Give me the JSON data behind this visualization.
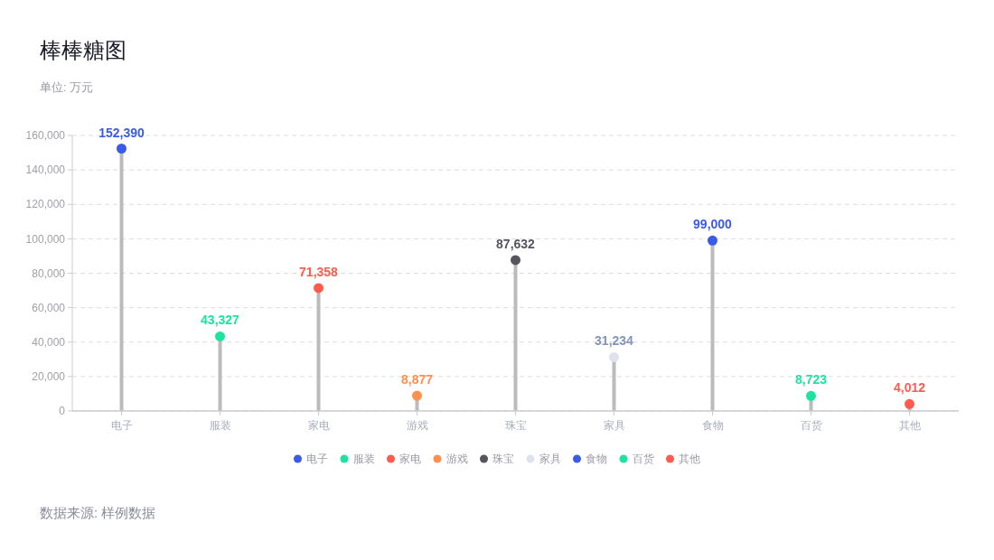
{
  "chart_data": {
    "type": "lollipop",
    "title": "棒棒糖图",
    "subtitle": "单位: 万元",
    "categories": [
      "电子",
      "服装",
      "家电",
      "游戏",
      "珠宝",
      "家具",
      "食物",
      "百货",
      "其他"
    ],
    "color": "#bbbbbb",
    "series": [
      {
        "name": "电子",
        "color": "#3a5ae8",
        "values": [
          152390,
          null,
          null,
          null,
          null,
          null,
          null,
          null,
          null
        ],
        "value_labels": [
          "152,390",
          null,
          null,
          null,
          null,
          null,
          null,
          null,
          null
        ]
      },
      {
        "name": "服装",
        "color": "#1ee3a0",
        "values": [
          null,
          43327,
          null,
          null,
          null,
          null,
          null,
          null,
          null
        ],
        "value_labels": [
          null,
          "43,327",
          null,
          null,
          null,
          null,
          null,
          null,
          null
        ]
      },
      {
        "name": "家电",
        "color": "#ff5b4f",
        "values": [
          null,
          null,
          71358,
          null,
          null,
          null,
          null,
          null,
          null
        ],
        "value_labels": [
          null,
          null,
          "71,358",
          null,
          null,
          null,
          null,
          null,
          null
        ]
      },
      {
        "name": "游戏",
        "color": "#ff8f4d",
        "values": [
          null,
          null,
          null,
          8877,
          null,
          null,
          null,
          null,
          null
        ],
        "value_labels": [
          null,
          null,
          null,
          "8,877",
          null,
          null,
          null,
          null,
          null
        ]
      },
      {
        "name": "珠宝",
        "color": "#55555f",
        "values": [
          null,
          null,
          null,
          null,
          87632,
          null,
          null,
          null,
          null
        ],
        "value_labels": [
          null,
          null,
          null,
          null,
          "87,632",
          null,
          null,
          null,
          null
        ]
      },
      {
        "name": "家具",
        "color": "#dde2ec",
        "values": [
          null,
          null,
          null,
          null,
          null,
          31234,
          null,
          null,
          null
        ],
        "value_labels": [
          null,
          null,
          null,
          null,
          null,
          "31,234",
          null,
          null,
          null
        ]
      },
      {
        "name": "食物",
        "color": "#3a5ae8",
        "values": [
          null,
          null,
          null,
          null,
          null,
          null,
          99000,
          null,
          null
        ],
        "value_labels": [
          null,
          null,
          null,
          null,
          null,
          null,
          "99,000",
          null,
          null
        ]
      },
      {
        "name": "百货",
        "color": "#1ee3a0",
        "values": [
          null,
          null,
          null,
          null,
          null,
          null,
          null,
          8723,
          null
        ],
        "value_labels": [
          null,
          null,
          null,
          null,
          null,
          null,
          null,
          "8,723",
          null
        ]
      },
      {
        "name": "其他",
        "color": "#ff5b4f",
        "values": [
          null,
          null,
          null,
          null,
          null,
          null,
          null,
          null,
          4012
        ],
        "value_labels": [
          null,
          null,
          null,
          null,
          null,
          null,
          null,
          null,
          "4,012"
        ]
      }
    ],
    "marker": "circle",
    "ylim": [
      0,
      160000
    ],
    "yticks": [
      0,
      {
        "value": 20000,
        "label": "20,000"
      },
      {
        "value": 40000,
        "label": "40,000"
      },
      {
        "value": 60000,
        "label": "60,000"
      },
      {
        "value": 80000,
        "label": "80,000"
      },
      {
        "value": 100000,
        "label": "100,000"
      },
      {
        "value": 120000,
        "label": "120,000"
      },
      {
        "value": 140000,
        "label": "140,000"
      },
      {
        "value": 160000,
        "label": "160,000"
      }
    ],
    "grid": "y",
    "legend": "bottom",
    "annotations": [
      "数据来源: 样例数据"
    ]
  }
}
